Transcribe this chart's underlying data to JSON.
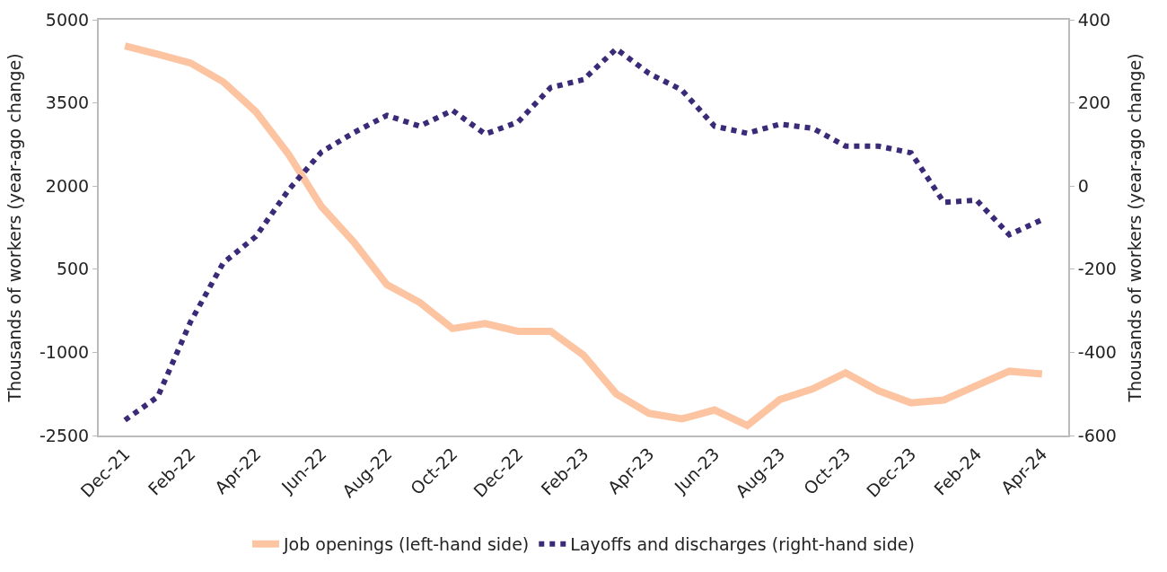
{
  "chart_data": {
    "type": "line",
    "ylabel": "Thousands of workers (year-ago change)",
    "y2label": "Thousands of workers (year-ago change)",
    "categories": [
      "Dec-21",
      null,
      "Feb-22",
      null,
      "Apr-22",
      null,
      "Jun-22",
      null,
      "Aug-22",
      null,
      "Oct-22",
      null,
      "Dec-22",
      null,
      "Feb-23",
      null,
      "Apr-23",
      null,
      "Jun-23",
      null,
      "Aug-23",
      null,
      "Oct-23",
      null,
      "Dec-23",
      null,
      "Feb-24",
      null,
      "Apr-24"
    ],
    "ylim": [
      -2500,
      5000
    ],
    "yticks": [
      5000,
      3500,
      2000,
      500,
      -1000,
      -2500
    ],
    "y2lim": [
      -600,
      400
    ],
    "y2ticks": [
      400,
      200,
      0,
      -200,
      -400,
      -600
    ],
    "legend": "bottom",
    "marker": "none",
    "series": [
      {
        "name": "Job openings (left-hand side)",
        "color": "#fdc4a2",
        "line_style": "solid",
        "values": [
          4530,
          4380,
          4220,
          3880,
          3340,
          2570,
          1630,
          980,
          220,
          -100,
          -570,
          -480,
          -620,
          -620,
          -1050,
          -1750,
          -2100,
          -2200,
          -2040,
          -2320,
          -1850,
          -1660,
          -1370,
          -1690,
          -1910,
          -1860,
          -1600,
          -1340,
          -1390
        ]
      },
      {
        "name": "Layoffs and discharges (right-hand side)",
        "color": "#3b2a78",
        "line_style": "dotted",
        "axis": "y2",
        "values": [
          -563,
          -507,
          -327,
          -185,
          -121,
          -9,
          82,
          129,
          170,
          144,
          182,
          125,
          154,
          237,
          256,
          330,
          271,
          231,
          144,
          127,
          149,
          139,
          96,
          96,
          80,
          -39,
          -34,
          -117,
          -81
        ]
      }
    ]
  }
}
